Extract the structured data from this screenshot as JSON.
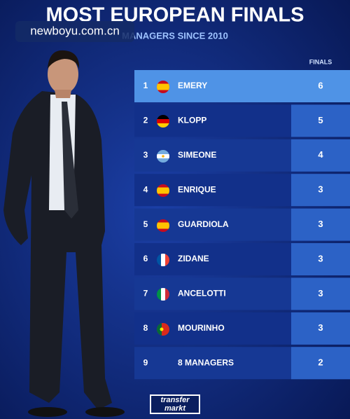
{
  "header": {
    "title": "MOST EUROPEAN FINALS",
    "subtitle": "MANAGERS SINCE 2010",
    "watermark": "newboyu.com.cn"
  },
  "table": {
    "column_header": "FINALS",
    "rows": [
      {
        "rank": 1,
        "name": "EMERY",
        "finals": 6
      },
      {
        "rank": 2,
        "name": "KLOPP",
        "finals": 5
      },
      {
        "rank": 3,
        "name": "SIMEONE",
        "finals": 4
      },
      {
        "rank": 4,
        "name": "ENRIQUE",
        "finals": 3
      },
      {
        "rank": 5,
        "name": "GUARDIOLA",
        "finals": 3
      },
      {
        "rank": 6,
        "name": "ZIDANE",
        "finals": 3
      },
      {
        "rank": 7,
        "name": "ANCELOTTI",
        "finals": 3
      },
      {
        "rank": 8,
        "name": "MOURINHO",
        "finals": 3
      },
      {
        "rank": 9,
        "name": "8 MANAGERS",
        "finals": 2
      }
    ]
  },
  "footer": {
    "logo_top": "transfer",
    "logo_bottom": "markt"
  }
}
